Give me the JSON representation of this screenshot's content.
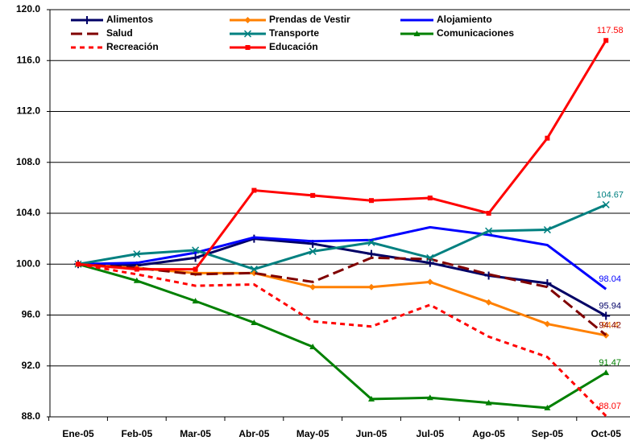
{
  "chart_data": {
    "type": "line",
    "categories": [
      "Ene-05",
      "Feb-05",
      "Mar-05",
      "Abr-05",
      "May-05",
      "Jun-05",
      "Jul-05",
      "Ago-05",
      "Sep-05",
      "Oct-05"
    ],
    "ylim": [
      88,
      120
    ],
    "yticks": [
      {
        "value": 88,
        "label": "88.0"
      },
      {
        "value": 92,
        "label": "92.0"
      },
      {
        "value": 96,
        "label": "96.0"
      },
      {
        "value": 100,
        "label": "100.0"
      },
      {
        "value": 104,
        "label": "104.0"
      },
      {
        "value": 108,
        "label": "108.0"
      },
      {
        "value": 112,
        "label": "112.0"
      },
      {
        "value": 116,
        "label": "116.0"
      },
      {
        "value": 120,
        "label": "120.0"
      }
    ],
    "grid": true,
    "data_labels": "last",
    "series": [
      {
        "name": "Alimentos",
        "color": "#000066",
        "dash": "solid",
        "marker": "plus",
        "values": [
          100,
          99.9,
          100.5,
          102.0,
          101.6,
          100.8,
          100.1,
          99.1,
          98.5,
          95.94
        ]
      },
      {
        "name": "Prendas de Vestir",
        "color": "#ff8000",
        "dash": "solid",
        "marker": "diamond",
        "values": [
          100,
          99.7,
          99.3,
          99.3,
          98.2,
          98.2,
          98.6,
          97.0,
          95.3,
          94.4
        ]
      },
      {
        "name": "Alojamiento",
        "color": "#0000ff",
        "dash": "solid",
        "marker": "none",
        "values": [
          100,
          100.1,
          100.9,
          102.1,
          101.8,
          101.9,
          102.9,
          102.3,
          101.5,
          98.04
        ]
      },
      {
        "name": "Salud",
        "color": "#800000",
        "dash": "long",
        "marker": "none",
        "values": [
          100,
          99.7,
          99.2,
          99.3,
          98.6,
          100.5,
          100.4,
          99.2,
          98.2,
          94.42
        ]
      },
      {
        "name": "Transporte",
        "color": "#008080",
        "dash": "solid",
        "marker": "x",
        "values": [
          100,
          100.8,
          101.1,
          99.6,
          101.0,
          101.7,
          100.5,
          102.6,
          102.7,
          104.67
        ]
      },
      {
        "name": "Comunicaciones",
        "color": "#008000",
        "dash": "solid",
        "marker": "triangle",
        "values": [
          100,
          98.7,
          97.1,
          95.4,
          93.5,
          89.4,
          89.5,
          89.1,
          88.7,
          91.47
        ]
      },
      {
        "name": "Recreación",
        "color": "#ff0000",
        "dash": "short",
        "marker": "none",
        "values": [
          100,
          99.2,
          98.3,
          98.4,
          95.5,
          95.1,
          96.8,
          94.3,
          92.7,
          88.07
        ]
      },
      {
        "name": "Educación",
        "color": "#ff0000",
        "dash": "solid",
        "marker": "square",
        "values": [
          100,
          99.6,
          99.6,
          105.8,
          105.4,
          105.0,
          105.2,
          104.0,
          109.9,
          117.58
        ]
      }
    ]
  }
}
